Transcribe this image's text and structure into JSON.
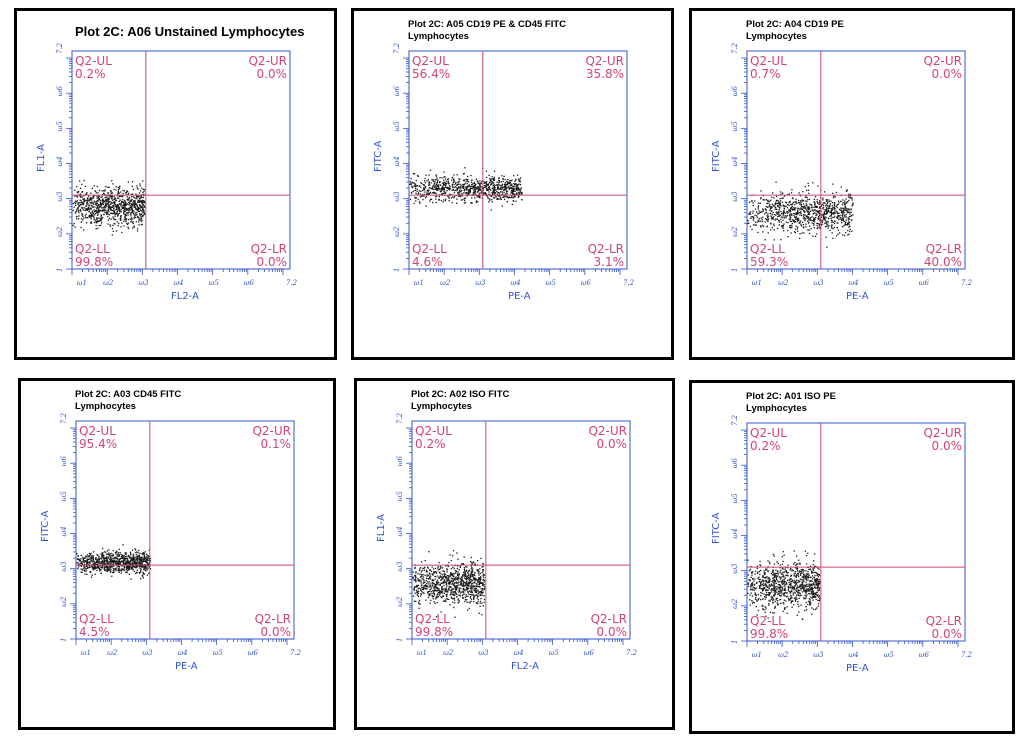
{
  "chart_data": [
    {
      "type": "scatter",
      "title": "Plot 2C: A06 Unstained Lymphocytes",
      "subtitle": "",
      "xlabel": "FL2-A",
      "ylabel": "FL1-A",
      "x_ticks": [
        "1",
        "1",
        "2",
        "3",
        "4",
        "5",
        "6",
        "7.2"
      ],
      "y_ticks": [
        "1",
        "2",
        "3",
        "4",
        "5",
        "6",
        "7.2"
      ],
      "gate": {
        "x": 3.1,
        "y": 3.1
      },
      "quadrants": {
        "UL": {
          "name": "Q2-UL",
          "value": "0.2%"
        },
        "UR": {
          "name": "Q2-UR",
          "value": "0.0%"
        },
        "LL": {
          "name": "Q2-LL",
          "value": "99.8%"
        },
        "LR": {
          "name": "Q2-LR",
          "value": "0.0%"
        }
      },
      "cluster": {
        "x_min": 1.0,
        "x_max": 3.05,
        "y_center": 2.8,
        "y_spread": 0.45,
        "points": 900
      }
    },
    {
      "type": "scatter",
      "title": "Plot 2C: A05 CD19 PE & CD45 FITC",
      "subtitle": "Lymphocytes",
      "xlabel": "PE-A",
      "ylabel": "FITC-A",
      "x_ticks": [
        "1",
        "1",
        "2",
        "3",
        "4",
        "5",
        "6",
        "7.2"
      ],
      "y_ticks": [
        "1",
        "2",
        "3",
        "4",
        "5",
        "6",
        "7.2"
      ],
      "gate": {
        "x": 3.1,
        "y": 3.1
      },
      "quadrants": {
        "UL": {
          "name": "Q2-UL",
          "value": "56.4%"
        },
        "UR": {
          "name": "Q2-UR",
          "value": "35.8%"
        },
        "LL": {
          "name": "Q2-LL",
          "value": "4.6%"
        },
        "LR": {
          "name": "Q2-LR",
          "value": "3.1%"
        }
      },
      "cluster": {
        "x_min": 1.0,
        "x_max": 4.2,
        "y_center": 3.3,
        "y_spread": 0.3,
        "points": 900
      }
    },
    {
      "type": "scatter",
      "title": "Plot 2C: A04 CD19 PE",
      "subtitle": "Lymphocytes",
      "xlabel": "PE-A",
      "ylabel": "FITC-A",
      "x_ticks": [
        "1",
        "1",
        "2",
        "3",
        "4",
        "5",
        "6",
        "7.2"
      ],
      "y_ticks": [
        "1",
        "2",
        "3",
        "4",
        "5",
        "6",
        "7.2"
      ],
      "gate": {
        "x": 3.1,
        "y": 3.1
      },
      "quadrants": {
        "UL": {
          "name": "Q2-UL",
          "value": "0.7%"
        },
        "UR": {
          "name": "Q2-UR",
          "value": "0.0%"
        },
        "LL": {
          "name": "Q2-LL",
          "value": "59.3%"
        },
        "LR": {
          "name": "Q2-LR",
          "value": "40.0%"
        }
      },
      "cluster": {
        "x_min": 1.0,
        "x_max": 4.0,
        "y_center": 2.6,
        "y_spread": 0.5,
        "points": 900
      }
    },
    {
      "type": "scatter",
      "title": "Plot 2C: A03 CD45 FITC",
      "subtitle": "Lymphocytes",
      "xlabel": "PE-A",
      "ylabel": "FITC-A",
      "x_ticks": [
        "1",
        "1",
        "2",
        "3",
        "4",
        "5",
        "6",
        "7.2"
      ],
      "y_ticks": [
        "1",
        "2",
        "3",
        "4",
        "5",
        "6",
        "7.2"
      ],
      "gate": {
        "x": 3.1,
        "y": 3.1
      },
      "quadrants": {
        "UL": {
          "name": "Q2-UL",
          "value": "95.4%"
        },
        "UR": {
          "name": "Q2-UR",
          "value": "0.1%"
        },
        "LL": {
          "name": "Q2-LL",
          "value": "4.5%"
        },
        "LR": {
          "name": "Q2-LR",
          "value": "0.0%"
        }
      },
      "cluster": {
        "x_min": 1.0,
        "x_max": 3.1,
        "y_center": 3.2,
        "y_spread": 0.25,
        "points": 900
      }
    },
    {
      "type": "scatter",
      "title": "Plot 2C: A02 ISO FITC",
      "subtitle": "Lymphocytes",
      "xlabel": "FL2-A",
      "ylabel": "FL1-A",
      "x_ticks": [
        "1",
        "1",
        "2",
        "3",
        "4",
        "5",
        "6",
        "7.2"
      ],
      "y_ticks": [
        "1",
        "2",
        "3",
        "4",
        "5",
        "6",
        "7.2"
      ],
      "gate": {
        "x": 3.1,
        "y": 3.1
      },
      "quadrants": {
        "UL": {
          "name": "Q2-UL",
          "value": "0.2%"
        },
        "UR": {
          "name": "Q2-UR",
          "value": "0.0%"
        },
        "LL": {
          "name": "Q2-LL",
          "value": "99.8%"
        },
        "LR": {
          "name": "Q2-LR",
          "value": "0.0%"
        }
      },
      "cluster": {
        "x_min": 1.0,
        "x_max": 3.05,
        "y_center": 2.6,
        "y_spread": 0.5,
        "points": 900
      }
    },
    {
      "type": "scatter",
      "title": "Plot 2C: A01 ISO PE",
      "subtitle": "Lymphocytes",
      "xlabel": "PE-A",
      "ylabel": "FITC-A",
      "x_ticks": [
        "1",
        "1",
        "2",
        "3",
        "4",
        "5",
        "6",
        "7.2"
      ],
      "y_ticks": [
        "1",
        "2",
        "3",
        "4",
        "5",
        "6",
        "7.2"
      ],
      "gate": {
        "x": 3.1,
        "y": 3.1
      },
      "quadrants": {
        "UL": {
          "name": "Q2-UL",
          "value": "0.2%"
        },
        "UR": {
          "name": "Q2-UR",
          "value": "0.0%"
        },
        "LL": {
          "name": "Q2-LL",
          "value": "99.8%"
        },
        "LR": {
          "name": "Q2-LR",
          "value": "0.0%"
        }
      },
      "cluster": {
        "x_min": 1.0,
        "x_max": 3.05,
        "y_center": 2.6,
        "y_spread": 0.55,
        "points": 900
      }
    }
  ],
  "colors": {
    "axis": "#3355cc",
    "gate": "#d1447a",
    "quadrant_text": "#d1447a",
    "dots": "#1a1a1a",
    "frame": "#000000"
  }
}
